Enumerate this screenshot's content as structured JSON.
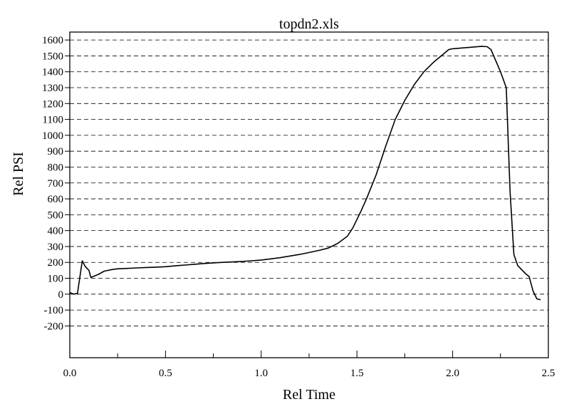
{
  "chart_data": {
    "type": "line",
    "title": "topdn2.xls",
    "xlabel": "Rel Time",
    "ylabel": "Rel PSI",
    "xlim": [
      0.0,
      2.5
    ],
    "ylim": [
      -400,
      1650
    ],
    "x_ticks": [
      0.0,
      0.5,
      1.0,
      1.5,
      2.0,
      2.5
    ],
    "x_tick_labels": [
      "0.0",
      "0.5",
      "1.0",
      "1.5",
      "2.0",
      "2.5"
    ],
    "x_minor_ticks": [
      0.25,
      0.75,
      1.25,
      1.75,
      2.25
    ],
    "y_ticks": [
      -200,
      -100,
      0,
      100,
      200,
      300,
      400,
      500,
      600,
      700,
      800,
      900,
      1000,
      1100,
      1200,
      1300,
      1400,
      1500,
      1600
    ],
    "y_tick_labels": [
      "-200",
      "-100",
      "0",
      "100",
      "200",
      "300",
      "400",
      "500",
      "600",
      "700",
      "800",
      "900",
      "1000",
      "1100",
      "1200",
      "1300",
      "1400",
      "1500",
      "1600"
    ],
    "grid": "horizontal-dashed",
    "line_color": "#000000",
    "series": [
      {
        "x": [
          0.0,
          0.02,
          0.04,
          0.065,
          0.08,
          0.1,
          0.11,
          0.13,
          0.15,
          0.18,
          0.22,
          0.25,
          0.3,
          0.35,
          0.4,
          0.45,
          0.5,
          0.55,
          0.6,
          0.65,
          0.7,
          0.75,
          0.8,
          0.85,
          0.9,
          0.95,
          1.0,
          1.05,
          1.1,
          1.15,
          1.2,
          1.25,
          1.3,
          1.35,
          1.4,
          1.45,
          1.48,
          1.52,
          1.55,
          1.6,
          1.65,
          1.7,
          1.75,
          1.8,
          1.85,
          1.9,
          1.95,
          1.98,
          2.0,
          2.05,
          2.1,
          2.15,
          2.18,
          2.2,
          2.25,
          2.28,
          2.3,
          2.32,
          2.34,
          2.36,
          2.38,
          2.4,
          2.42,
          2.44,
          2.46
        ],
        "y": [
          10,
          0,
          5,
          210,
          175,
          150,
          105,
          115,
          125,
          145,
          155,
          160,
          162,
          165,
          168,
          170,
          173,
          178,
          183,
          188,
          193,
          197,
          200,
          203,
          206,
          210,
          215,
          222,
          230,
          240,
          250,
          262,
          275,
          290,
          320,
          365,
          420,
          520,
          600,
          750,
          930,
          1100,
          1220,
          1320,
          1400,
          1460,
          1510,
          1540,
          1545,
          1550,
          1555,
          1560,
          1558,
          1540,
          1400,
          1300,
          650,
          250,
          180,
          155,
          130,
          110,
          20,
          -30,
          -35
        ]
      }
    ]
  }
}
